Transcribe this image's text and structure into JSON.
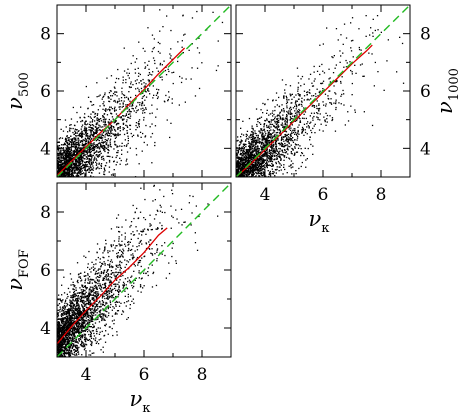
{
  "chart_data": [
    {
      "type": "scatter",
      "panel": "top-left",
      "ylabel": {
        "symbol": "ν",
        "sub": "500"
      },
      "xlabel": null,
      "xlim": [
        3,
        9
      ],
      "ylim": [
        3,
        9
      ],
      "xticks": [
        4,
        6,
        8
      ],
      "yticks": [
        4,
        6,
        8
      ],
      "y_ticklabels_side": "left",
      "x_ticklabels": false,
      "scatter_trend": {
        "slope": 0.95,
        "intercept": 0.15,
        "spread": 0.85,
        "n_points": 2600
      },
      "series": [
        {
          "style": "solid",
          "color": "#dd0000",
          "x": [
            3.0,
            3.5,
            4.0,
            4.5,
            5.0,
            5.5,
            6.0,
            6.5,
            7.0,
            7.4
          ],
          "y": [
            3.05,
            3.55,
            4.05,
            4.55,
            5.0,
            5.55,
            6.05,
            6.6,
            7.1,
            7.5
          ]
        },
        {
          "style": "dashed",
          "color": "#22bb22",
          "x": [
            3,
            9
          ],
          "y": [
            3,
            9
          ]
        }
      ]
    },
    {
      "type": "scatter",
      "panel": "top-right",
      "ylabel": {
        "symbol": "ν",
        "sub": "1000"
      },
      "xlabel": {
        "symbol": "ν",
        "sub": "κ"
      },
      "xlim": [
        3,
        9
      ],
      "ylim": [
        3,
        9
      ],
      "xticks": [
        4,
        6,
        8
      ],
      "yticks": [
        4,
        6,
        8
      ],
      "y_ticklabels_side": "right",
      "x_ticklabels": true,
      "scatter_trend": {
        "slope": 0.95,
        "intercept": 0.1,
        "spread": 0.8,
        "n_points": 2600
      },
      "series": [
        {
          "style": "solid",
          "color": "#dd0000",
          "x": [
            3.0,
            3.5,
            4.0,
            4.5,
            5.0,
            5.5,
            6.0,
            6.5,
            7.0,
            7.5,
            7.7
          ],
          "y": [
            3.0,
            3.45,
            3.95,
            4.45,
            4.95,
            5.45,
            5.95,
            6.45,
            6.95,
            7.4,
            7.6
          ]
        },
        {
          "style": "dashed",
          "color": "#22bb22",
          "x": [
            3,
            9
          ],
          "y": [
            3,
            9
          ]
        }
      ]
    },
    {
      "type": "scatter",
      "panel": "bottom-left",
      "ylabel": {
        "symbol": "ν",
        "sub": "FOF"
      },
      "xlabel": {
        "symbol": "ν",
        "sub": "κ"
      },
      "xlim": [
        3,
        9
      ],
      "ylim": [
        3,
        9
      ],
      "xticks": [
        4,
        6,
        8
      ],
      "yticks": [
        4,
        6,
        8
      ],
      "y_ticklabels_side": "left",
      "x_ticklabels": true,
      "scatter_trend": {
        "slope": 1.1,
        "intercept": 0.2,
        "spread": 0.9,
        "n_points": 2600
      },
      "series": [
        {
          "style": "solid",
          "color": "#dd0000",
          "x": [
            3.0,
            3.5,
            4.0,
            4.5,
            5.0,
            5.5,
            6.0,
            6.5,
            6.8
          ],
          "y": [
            3.45,
            4.05,
            4.6,
            5.1,
            5.65,
            6.1,
            6.6,
            7.2,
            7.45
          ]
        },
        {
          "style": "dashed",
          "color": "#22bb22",
          "x": [
            3,
            9
          ],
          "y": [
            3,
            9
          ]
        }
      ]
    }
  ]
}
